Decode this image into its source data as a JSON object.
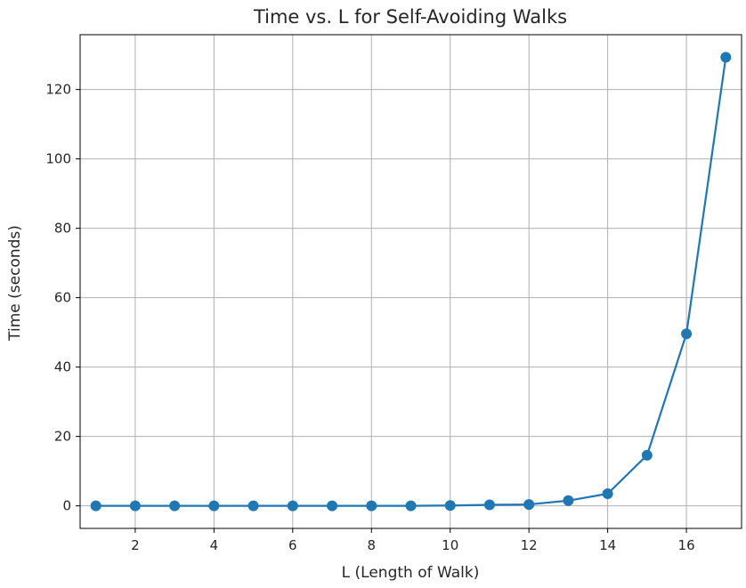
{
  "chart_data": {
    "type": "line",
    "title": "Time vs. L for Self-Avoiding Walks",
    "xlabel": "L (Length of Walk)",
    "ylabel": "Time (seconds)",
    "xlim": [
      0.6,
      17.4
    ],
    "ylim": [
      -6.5,
      135.8
    ],
    "grid": true,
    "x_ticks": [
      2,
      4,
      6,
      8,
      10,
      12,
      14,
      16
    ],
    "y_ticks": [
      0,
      20,
      40,
      60,
      80,
      100,
      120
    ],
    "series": [
      {
        "color": "#1f77b4",
        "marker": "circle",
        "x": [
          1,
          2,
          3,
          4,
          5,
          6,
          7,
          8,
          9,
          10,
          11,
          12,
          13,
          14,
          15,
          16,
          17
        ],
        "y": [
          0.0,
          0.0,
          0.0,
          0.0,
          0.0,
          0.0,
          0.0,
          0.0,
          0.0,
          0.1,
          0.3,
          0.4,
          1.5,
          3.5,
          14.6,
          49.6,
          129.3
        ]
      }
    ]
  }
}
